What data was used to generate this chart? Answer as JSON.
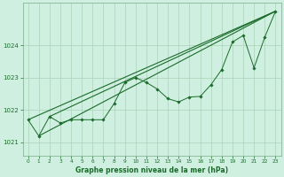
{
  "bg_color": "#cff0e0",
  "grid_color": "#b0d8c0",
  "line_color": "#1a6b2a",
  "xlabel": "Graphe pression niveau de la mer (hPa)",
  "xlim": [
    -0.5,
    23.5
  ],
  "ylim": [
    1020.6,
    1025.3
  ],
  "yticks": [
    1021,
    1022,
    1023,
    1024
  ],
  "xticks": [
    0,
    1,
    2,
    3,
    4,
    5,
    6,
    7,
    8,
    9,
    10,
    11,
    12,
    13,
    14,
    15,
    16,
    17,
    18,
    19,
    20,
    21,
    22,
    23
  ],
  "straight_lines": [
    {
      "x": [
        0,
        23
      ],
      "y": [
        1021.7,
        1025.05
      ]
    },
    {
      "x": [
        1,
        23
      ],
      "y": [
        1021.2,
        1025.05
      ]
    },
    {
      "x": [
        2,
        23
      ],
      "y": [
        1021.8,
        1025.05
      ]
    }
  ],
  "detail_line": {
    "x": [
      0,
      1,
      2,
      3,
      4,
      5,
      6,
      7,
      8,
      9,
      10,
      11,
      12,
      13,
      14,
      15,
      16,
      17,
      18,
      19,
      20,
      21,
      22,
      23
    ],
    "y": [
      1021.7,
      1021.2,
      1021.8,
      1021.6,
      1021.7,
      1021.7,
      1021.7,
      1021.7,
      1022.2,
      1022.85,
      1023.0,
      1022.85,
      1022.65,
      1022.35,
      1022.25,
      1022.4,
      1022.42,
      1022.78,
      1023.25,
      1024.1,
      1024.3,
      1023.3,
      1024.25,
      1025.05
    ]
  }
}
